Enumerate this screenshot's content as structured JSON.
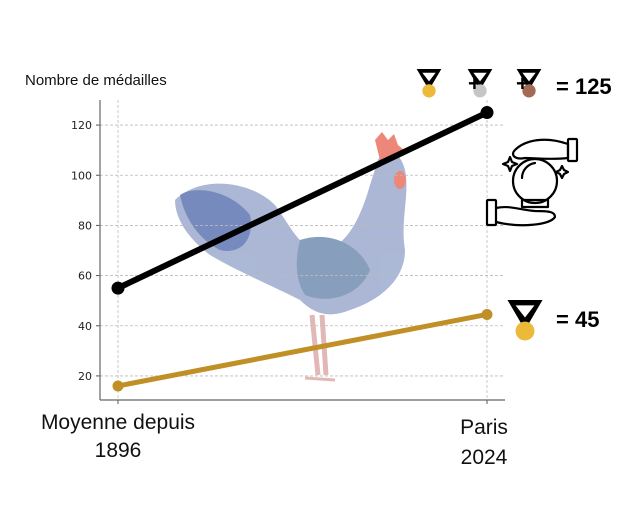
{
  "chart_data": {
    "type": "line",
    "ylabel": "Nombre de médailles",
    "categories": [
      "Moyenne depuis\n1896",
      "Paris\n2024"
    ],
    "category_lines": [
      [
        "Moyenne depuis",
        "1896"
      ],
      [
        "Paris",
        "2024"
      ]
    ],
    "ylim": [
      10.4,
      130
    ],
    "yticks": [
      20,
      40,
      60,
      80,
      100,
      120
    ],
    "grid": true,
    "series": [
      {
        "name": "Total médailles",
        "color": "#000000",
        "values": [
          55,
          125
        ]
      },
      {
        "name": "Médailles d'or",
        "color": "#c08f25",
        "values": [
          16,
          44.5
        ]
      }
    ],
    "annotations": {
      "total_label": "= 125",
      "gold_label": "= 45",
      "plus": "+"
    },
    "medal_colors": {
      "gold": "#ecb939",
      "silver": "#c6c6c6",
      "bronze": "#a36a54"
    }
  }
}
